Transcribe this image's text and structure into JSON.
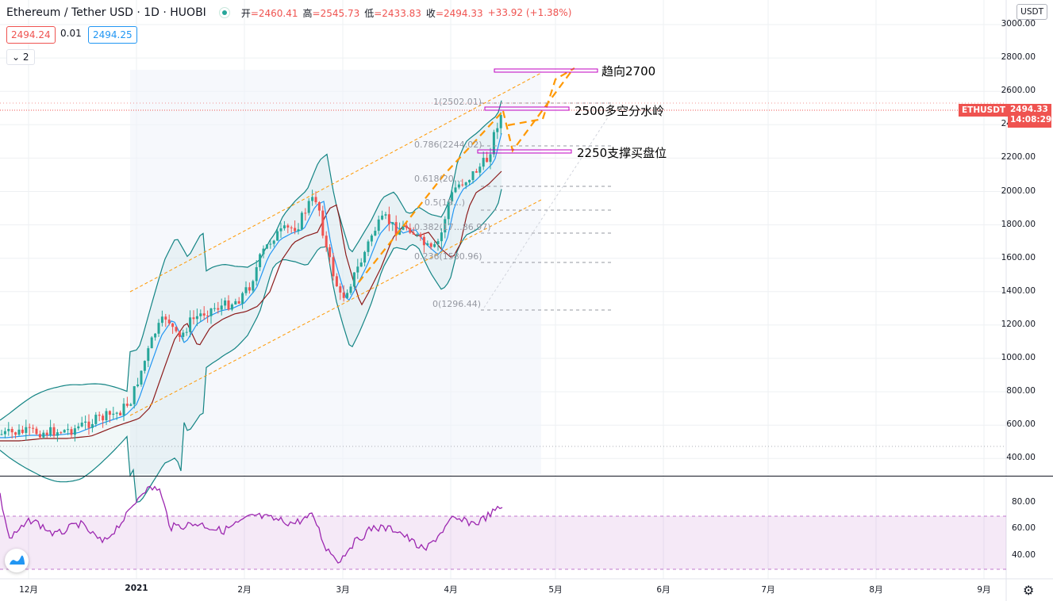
{
  "header": {
    "symbol": "Ethereum / Tether USD · 1D · HUOBI",
    "open_label": "开",
    "open_value": "=2460.41",
    "high_label": "高",
    "high_value": "=2545.73",
    "low_label": "低",
    "low_value": "=2433.83",
    "close_label": "收",
    "close_value": "=2494.33",
    "change": "+33.92 (+1.38%)"
  },
  "bid_ask": {
    "bid": "2494.24",
    "spread": "0.01",
    "ask": "2494.25"
  },
  "indicator_toggle": {
    "label": "2"
  },
  "price_axis": {
    "currency": "USDT",
    "ticks": [
      "3000.00",
      "2800.00",
      "2600.00",
      "2400.00",
      "2200.00",
      "2000.00",
      "1800.00",
      "1600.00",
      "1400.00",
      "1200.00",
      "1000.00",
      "800.00",
      "600.00",
      "400.00"
    ],
    "symbol_tag": "ETHUSDT",
    "last_price": "2494.33",
    "countdown": "14:08:29"
  },
  "rsi_axis": {
    "ticks": [
      "80.00",
      "60.00",
      "40.00"
    ]
  },
  "time_axis": {
    "ticks": [
      "12月",
      "2021",
      "2月",
      "3月",
      "4月",
      "5月",
      "6月",
      "7月",
      "8月",
      "9月"
    ]
  },
  "annotations": {
    "target": "趋向2700",
    "pivot": "2500多空分水岭",
    "support": "2250支撑买盘位"
  },
  "fibonacci": {
    "levels": [
      "1(2502.01)",
      "0.786(2244.02)",
      "0.618(20…",
      "0.5(19…)",
      "0.382(17…86.97)",
      "0.236(1580.96)",
      "0(1296.44)"
    ]
  },
  "colors": {
    "up": "#26a69a",
    "down": "#ef5350",
    "bollinger": "#138484",
    "ma": "#8b1a1a",
    "ema": "#2196f3",
    "rsi": "#9c27b0",
    "channel": "#ff9800",
    "fib": "#9598a1",
    "box": "#c000c0"
  },
  "icons": {
    "logo": "tradingview-logo-icon",
    "settings": "gear-icon"
  }
}
